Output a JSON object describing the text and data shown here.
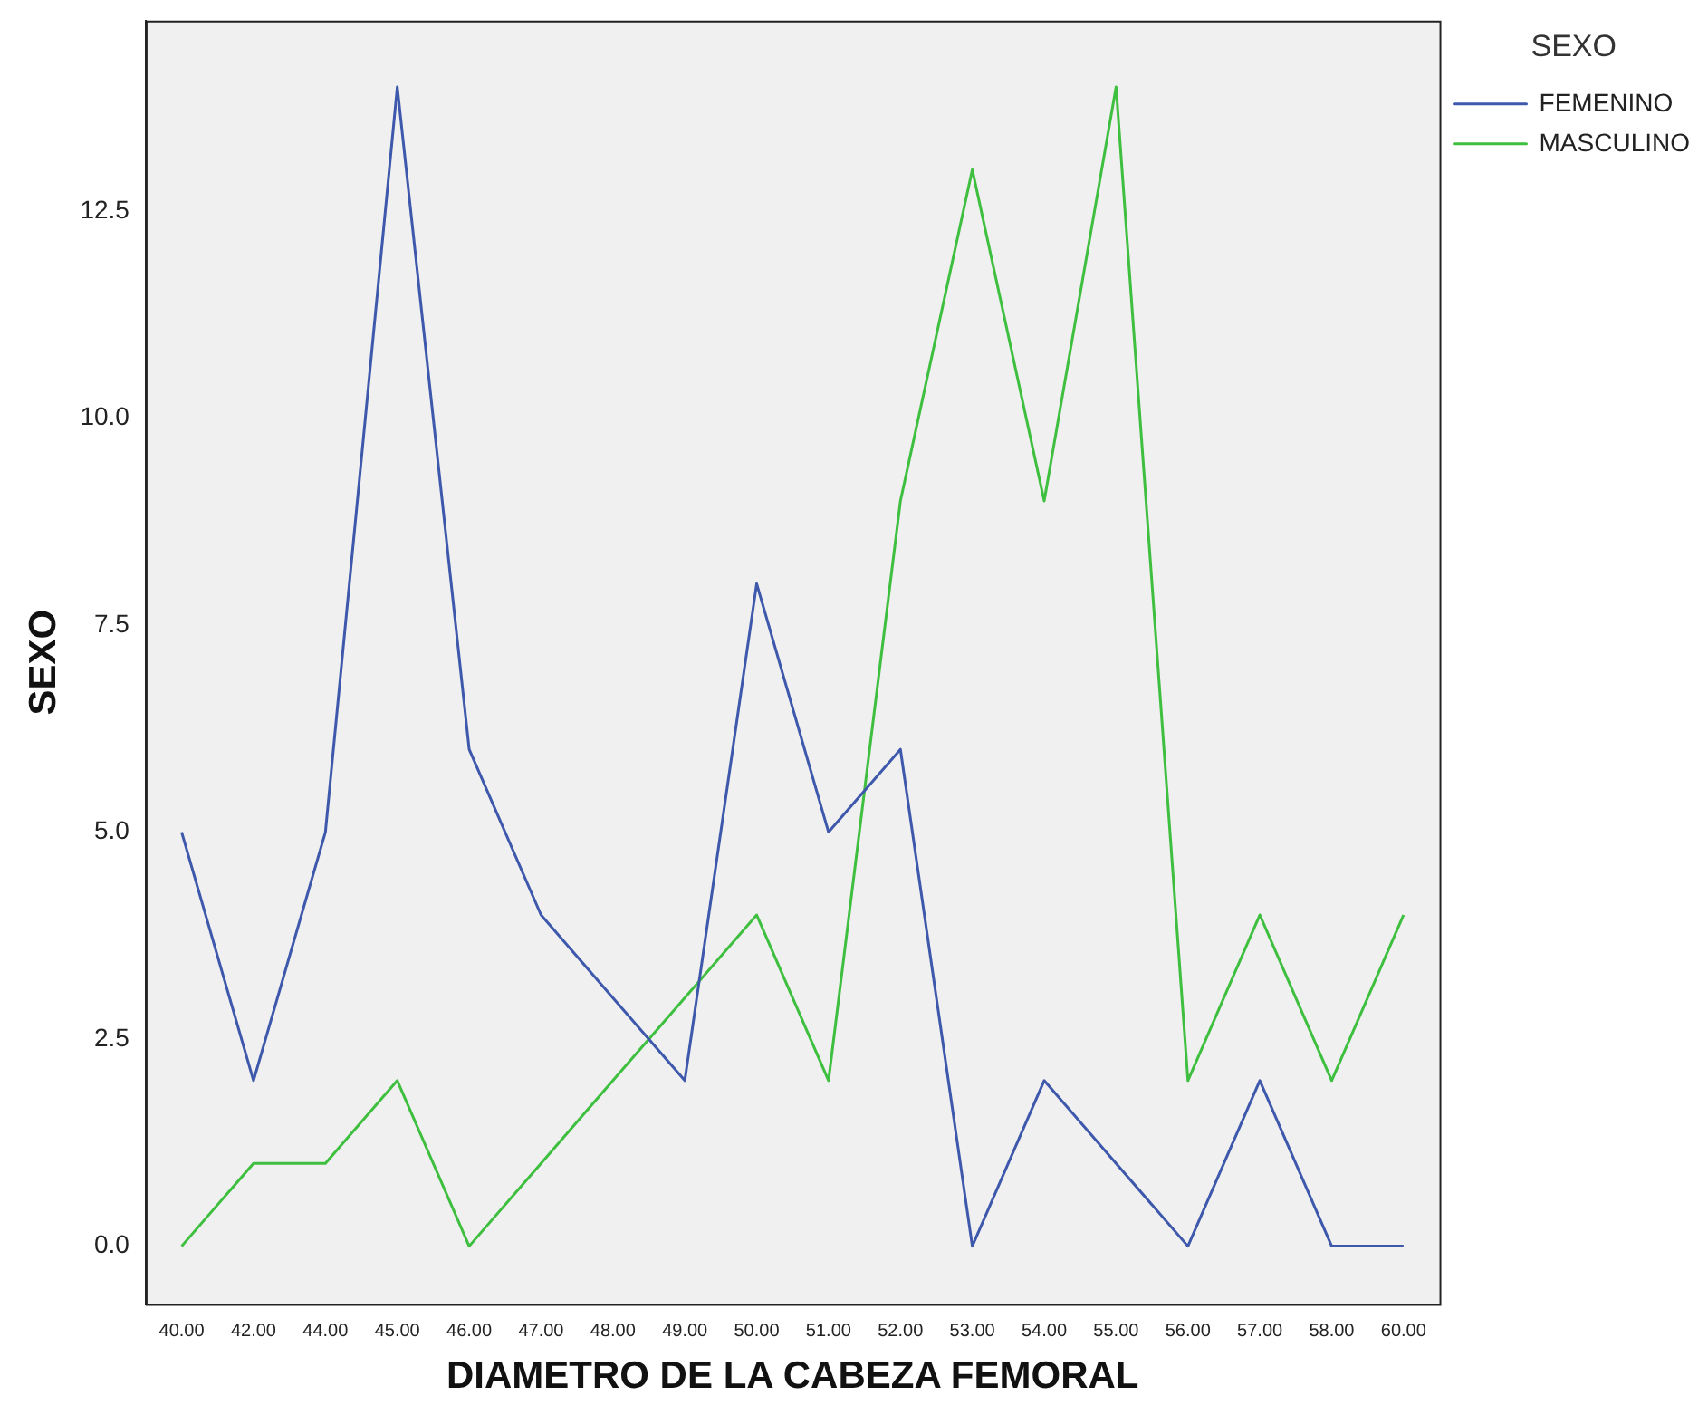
{
  "chart_data": {
    "type": "line",
    "xlabel": "DIAMETRO DE LA CABEZA FEMORAL",
    "ylabel": "SEXO",
    "legend_title": "SEXO",
    "categories": [
      "40.00",
      "42.00",
      "44.00",
      "45.00",
      "46.00",
      "47.00",
      "48.00",
      "49.00",
      "50.00",
      "51.00",
      "52.00",
      "53.00",
      "54.00",
      "55.00",
      "56.00",
      "57.00",
      "58.00",
      "60.00"
    ],
    "series": [
      {
        "name": "FEMENINO",
        "color": "#3e58ac",
        "values": [
          5,
          2,
          5,
          14,
          6,
          4,
          3,
          2,
          8,
          5,
          6,
          0,
          2,
          1,
          0,
          2,
          0,
          0
        ]
      },
      {
        "name": "MASCULINO",
        "color": "#3fbf3f",
        "values": [
          0,
          1,
          1,
          2,
          0,
          1,
          2,
          3,
          4,
          2,
          9,
          13,
          9,
          14,
          2,
          4,
          2,
          4
        ]
      }
    ],
    "ylim": [
      -0.7,
      14.8
    ],
    "yticks": [
      {
        "value": 0,
        "label": "0.0"
      },
      2.5,
      {
        "value": 5,
        "label": "5.0"
      },
      7.5,
      {
        "value": 10,
        "label": "10.0"
      },
      12.5
    ],
    "grid": false,
    "legend": "top right",
    "marker": "none",
    "line_style": "solid"
  }
}
